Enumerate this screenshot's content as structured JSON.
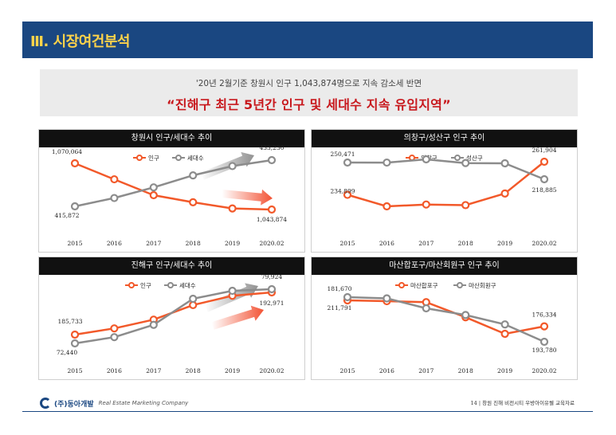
{
  "header": {
    "title": "Ⅲ. 시장여건분석"
  },
  "banner": {
    "subtitle": "'20년 2월기준 창원시 인구 1,043,874명으로 지속 감소세 반면",
    "headline": "“진해구 최근 5년간 인구 및 세대수 지속 유입지역”"
  },
  "colors": {
    "orange": "#f2592a",
    "gray": "#8c8c8c",
    "header_bg": "#1a4781",
    "title_color": "#ffd34a",
    "headline_color": "#c8181d"
  },
  "chart_data": [
    {
      "type": "line",
      "title": "창원시 인구/세대수 추이",
      "categories": [
        "2015",
        "2016",
        "2017",
        "2018",
        "2019",
        "2020.02"
      ],
      "series": [
        {
          "name": "인구",
          "color": "#f2592a",
          "values": [
            1070064,
            1061000,
            1052000,
            1048000,
            1044500,
            1043874
          ]
        },
        {
          "name": "세대수",
          "color": "#8c8c8c",
          "values": [
            415872,
            419000,
            423000,
            427500,
            431000,
            433230
          ]
        }
      ],
      "labels": [
        {
          "series": 0,
          "index": 0,
          "text": "1,070,064"
        },
        {
          "series": 0,
          "index": 5,
          "text": "1,043,874"
        },
        {
          "series": 1,
          "index": 0,
          "text": "415,872"
        },
        {
          "series": 1,
          "index": 5,
          "text": "433,230"
        }
      ]
    },
    {
      "type": "line",
      "title": "의창구/성산구 인구 추이",
      "categories": [
        "2015",
        "2016",
        "2017",
        "2018",
        "2019",
        "2020.02"
      ],
      "series": [
        {
          "name": "의창구",
          "color": "#f2592a",
          "values": [
            234899,
            225500,
            227000,
            226500,
            236000,
            261904
          ]
        },
        {
          "name": "성산구",
          "color": "#8c8c8c",
          "values": [
            250471,
            250400,
            256500,
            249500,
            249000,
            218885
          ]
        }
      ],
      "labels": [
        {
          "series": 0,
          "index": 0,
          "text": "234,899"
        },
        {
          "series": 0,
          "index": 5,
          "text": "261,904"
        },
        {
          "series": 1,
          "index": 0,
          "text": "250,471"
        },
        {
          "series": 1,
          "index": 5,
          "text": "218,885"
        }
      ]
    },
    {
      "type": "line",
      "title": "진해구 인구/세대수 추이",
      "categories": [
        "2015",
        "2016",
        "2017",
        "2018",
        "2019",
        "2020.02"
      ],
      "series": [
        {
          "name": "인구",
          "color": "#f2592a",
          "values": [
            185733,
            186800,
            188300,
            190800,
            192400,
            192971
          ]
        },
        {
          "name": "세대수",
          "color": "#8c8c8c",
          "values": [
            72440,
            73300,
            75000,
            78600,
            79700,
            79924
          ]
        }
      ],
      "labels": [
        {
          "series": 0,
          "index": 0,
          "text": "185,733"
        },
        {
          "series": 0,
          "index": 5,
          "text": "192,971"
        },
        {
          "series": 1,
          "index": 0,
          "text": "72,440"
        },
        {
          "series": 1,
          "index": 5,
          "text": "79,924"
        }
      ]
    },
    {
      "type": "line",
      "title": "마산합포구/마산회원구 인구 추이",
      "categories": [
        "2015",
        "2016",
        "2017",
        "2018",
        "2019",
        "2020.02"
      ],
      "series": [
        {
          "name": "마산합포구",
          "color": "#f2592a",
          "values": [
            181670,
            181500,
            181300,
            178200,
            174800,
            176334
          ]
        },
        {
          "name": "마산회원구",
          "color": "#8c8c8c",
          "values": [
            211791,
            211300,
            207300,
            204600,
            200800,
            193780
          ]
        }
      ],
      "labels": [
        {
          "series": 0,
          "index": 0,
          "text": "181,670"
        },
        {
          "series": 0,
          "index": 5,
          "text": "176,334"
        },
        {
          "series": 1,
          "index": 0,
          "text": "211,791"
        },
        {
          "series": 1,
          "index": 5,
          "text": "193,780"
        }
      ]
    }
  ],
  "footer": {
    "company": "(주)동아개발",
    "company_sub": "Real Estate Marketing Company",
    "page": "14",
    "doc_title": "창원 진해 비전시티 우방아이유쉘 교육자료"
  }
}
